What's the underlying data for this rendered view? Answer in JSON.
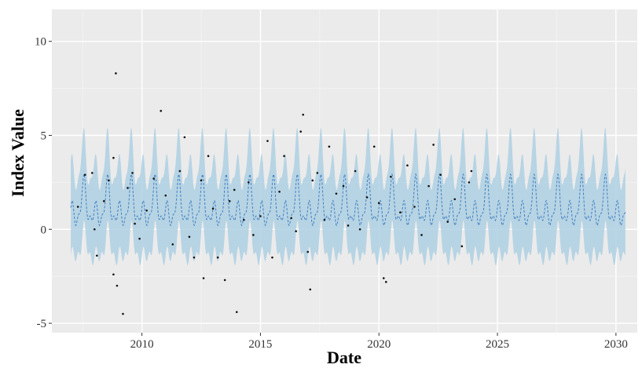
{
  "chart_data": {
    "type": "line",
    "title": "",
    "xlabel": "Date",
    "ylabel": "Index Value",
    "xlim": [
      2006.2,
      2030.9
    ],
    "ylim": [
      -5.5,
      11.7
    ],
    "x_ticks": [
      2010,
      2015,
      2020,
      2025,
      2030
    ],
    "x_tick_labels": [
      "2010",
      "2015",
      "2020",
      "2025",
      "2030"
    ],
    "y_ticks": [
      -5,
      0,
      5,
      10
    ],
    "y_tick_labels": [
      "-5",
      "0",
      "5",
      "10"
    ],
    "grid": true,
    "legend": "none",
    "forecast": {
      "x_start": 2007.0,
      "x_end": 2030.4,
      "period": 1.0,
      "peak_phase": 0.55,
      "baseline": 1.5,
      "amplitude": 1.4,
      "band_half_width": 2.2
    },
    "observations": [
      {
        "x": 2007.3,
        "y": 1.2
      },
      {
        "x": 2007.6,
        "y": 2.9
      },
      {
        "x": 2007.9,
        "y": 3.0
      },
      {
        "x": 2008.0,
        "y": 0.0
      },
      {
        "x": 2008.1,
        "y": -1.4
      },
      {
        "x": 2008.4,
        "y": 1.5
      },
      {
        "x": 2008.6,
        "y": 2.6
      },
      {
        "x": 2008.8,
        "y": 3.8
      },
      {
        "x": 2008.9,
        "y": 8.3
      },
      {
        "x": 2008.8,
        "y": -2.4
      },
      {
        "x": 2008.95,
        "y": -3.0
      },
      {
        "x": 2009.2,
        "y": -4.5
      },
      {
        "x": 2009.4,
        "y": 2.2
      },
      {
        "x": 2009.6,
        "y": 3.0
      },
      {
        "x": 2009.7,
        "y": 0.3
      },
      {
        "x": 2009.9,
        "y": -0.5
      },
      {
        "x": 2010.2,
        "y": 1.0
      },
      {
        "x": 2010.5,
        "y": 2.7
      },
      {
        "x": 2010.8,
        "y": 6.3
      },
      {
        "x": 2011.0,
        "y": 1.8
      },
      {
        "x": 2011.3,
        "y": -0.8
      },
      {
        "x": 2011.6,
        "y": 3.1
      },
      {
        "x": 2011.8,
        "y": 4.9
      },
      {
        "x": 2012.0,
        "y": -0.4
      },
      {
        "x": 2012.2,
        "y": -1.5
      },
      {
        "x": 2012.5,
        "y": 2.6
      },
      {
        "x": 2012.6,
        "y": -2.6
      },
      {
        "x": 2012.8,
        "y": 3.9
      },
      {
        "x": 2013.0,
        "y": 1.1
      },
      {
        "x": 2013.2,
        "y": -1.5
      },
      {
        "x": 2013.5,
        "y": -2.7
      },
      {
        "x": 2013.7,
        "y": 1.5
      },
      {
        "x": 2013.9,
        "y": 2.1
      },
      {
        "x": 2014.0,
        "y": -4.4
      },
      {
        "x": 2014.3,
        "y": 0.5
      },
      {
        "x": 2014.5,
        "y": 2.5
      },
      {
        "x": 2014.7,
        "y": -0.3
      },
      {
        "x": 2015.0,
        "y": 0.7
      },
      {
        "x": 2015.3,
        "y": 4.7
      },
      {
        "x": 2015.5,
        "y": -1.5
      },
      {
        "x": 2015.8,
        "y": 2.0
      },
      {
        "x": 2016.0,
        "y": 3.9
      },
      {
        "x": 2016.3,
        "y": 0.6
      },
      {
        "x": 2016.5,
        "y": -0.1
      },
      {
        "x": 2016.7,
        "y": 5.2
      },
      {
        "x": 2016.8,
        "y": 6.1
      },
      {
        "x": 2017.0,
        "y": -1.2
      },
      {
        "x": 2017.2,
        "y": 2.6
      },
      {
        "x": 2017.4,
        "y": 3.0
      },
      {
        "x": 2017.1,
        "y": -3.2
      },
      {
        "x": 2017.7,
        "y": 0.5
      },
      {
        "x": 2017.9,
        "y": 4.4
      },
      {
        "x": 2018.2,
        "y": 1.9
      },
      {
        "x": 2018.5,
        "y": 2.3
      },
      {
        "x": 2018.7,
        "y": 0.2
      },
      {
        "x": 2019.0,
        "y": 3.1
      },
      {
        "x": 2019.2,
        "y": 0.0
      },
      {
        "x": 2019.5,
        "y": 1.7
      },
      {
        "x": 2019.8,
        "y": 4.4
      },
      {
        "x": 2020.0,
        "y": 1.4
      },
      {
        "x": 2020.2,
        "y": -2.6
      },
      {
        "x": 2020.3,
        "y": -2.8
      },
      {
        "x": 2020.5,
        "y": 2.8
      },
      {
        "x": 2020.9,
        "y": 0.9
      },
      {
        "x": 2021.2,
        "y": 3.4
      },
      {
        "x": 2021.5,
        "y": 1.2
      },
      {
        "x": 2021.8,
        "y": -0.3
      },
      {
        "x": 2022.1,
        "y": 2.3
      },
      {
        "x": 2022.3,
        "y": 4.5
      },
      {
        "x": 2022.6,
        "y": 2.9
      },
      {
        "x": 2022.9,
        "y": 0.4
      },
      {
        "x": 2023.2,
        "y": 1.6
      },
      {
        "x": 2023.5,
        "y": -0.9
      },
      {
        "x": 2023.8,
        "y": 2.5
      },
      {
        "x": 2023.9,
        "y": 3.1
      }
    ]
  }
}
